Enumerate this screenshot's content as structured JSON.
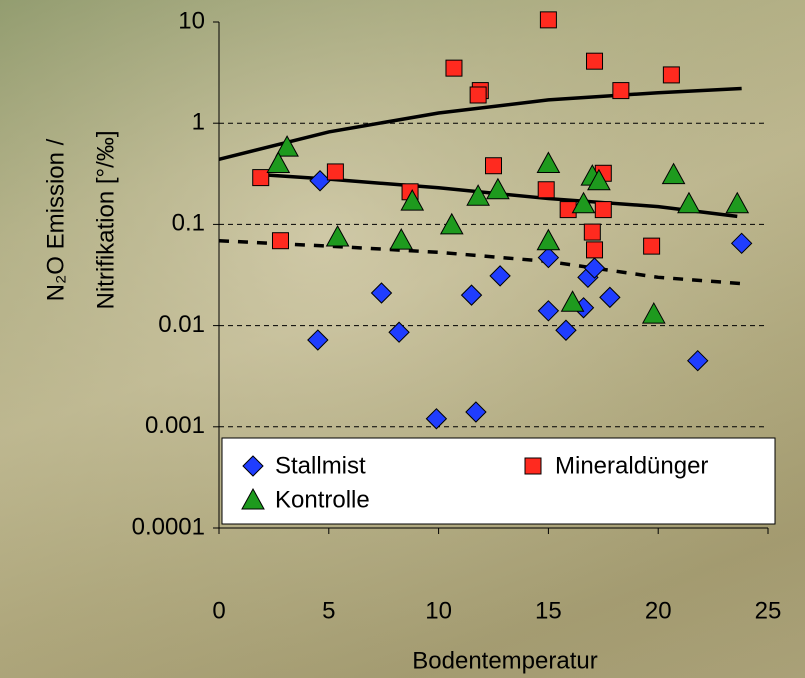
{
  "chart_data": {
    "type": "scatter",
    "x_label": "Bodentemperatur",
    "y_label_lines": [
      "N₂O Emission /",
      "Nitrifikation [°/‰]"
    ],
    "log_y": true,
    "grid": true,
    "xlim": [
      0,
      25
    ],
    "xticks": [
      0,
      5,
      10,
      15,
      20,
      25
    ],
    "ylim": [
      0.0001,
      10
    ],
    "yticks": [
      10,
      1,
      0.1,
      0.01,
      0.001,
      0.0001
    ],
    "legend": "bottom",
    "series": [
      {
        "name": "Stallmist",
        "color": "#1f3dff",
        "marker": "diamond",
        "x": [
          4.6,
          4.5,
          7.4,
          8.2,
          9.9,
          11.7,
          11.5,
          12.8,
          15.0,
          15.0,
          15.8,
          16.6,
          16.8,
          17.1,
          17.8,
          21.8,
          23.8
        ],
        "values": [
          0.27,
          0.0072,
          0.021,
          0.0086,
          0.0012,
          0.0014,
          0.02,
          0.031,
          0.047,
          0.014,
          0.009,
          0.015,
          0.03,
          0.037,
          0.019,
          0.0045,
          0.065
        ]
      },
      {
        "name": "Mineraldünger",
        "color": "#ff2a1f",
        "marker": "square",
        "x": [
          1.9,
          2.8,
          5.3,
          8.7,
          10.7,
          11.9,
          11.8,
          12.5,
          15.0,
          14.9,
          15.9,
          17.1,
          17.0,
          17.1,
          17.5,
          17.5,
          18.3,
          19.7,
          20.6
        ],
        "values": [
          0.29,
          0.069,
          0.33,
          0.21,
          3.5,
          2.1,
          1.9,
          0.38,
          10.5,
          0.22,
          0.14,
          4.1,
          0.084,
          0.056,
          0.32,
          0.14,
          2.1,
          0.061,
          3.0
        ]
      },
      {
        "name": "Kontrolle",
        "color": "#1e9a1e",
        "marker": "triangle",
        "x": [
          3.1,
          2.7,
          5.4,
          8.3,
          8.8,
          10.6,
          11.8,
          12.7,
          15.0,
          15.0,
          16.1,
          16.6,
          17.0,
          17.3,
          19.8,
          20.7,
          21.4,
          23.6
        ],
        "values": [
          0.58,
          0.4,
          0.075,
          0.07,
          0.17,
          0.099,
          0.19,
          0.22,
          0.4,
          0.069,
          0.017,
          0.16,
          0.3,
          0.27,
          0.013,
          0.31,
          0.16,
          0.16
        ]
      }
    ],
    "trend_lines": [
      {
        "color": "#000000",
        "dash": false,
        "x": [
          0,
          5,
          10,
          15,
          20,
          23.8
        ],
        "values": [
          0.44,
          0.82,
          1.26,
          1.7,
          2.0,
          2.2
        ]
      },
      {
        "color": "#000000",
        "dash": false,
        "x": [
          1.9,
          5,
          10,
          15,
          20,
          23.6
        ],
        "values": [
          0.31,
          0.28,
          0.23,
          0.18,
          0.15,
          0.12
        ]
      },
      {
        "color": "#000000",
        "dash": true,
        "x": [
          0,
          5,
          10,
          15,
          20,
          23.8
        ],
        "values": [
          0.069,
          0.061,
          0.053,
          0.043,
          0.03,
          0.026
        ]
      }
    ]
  }
}
